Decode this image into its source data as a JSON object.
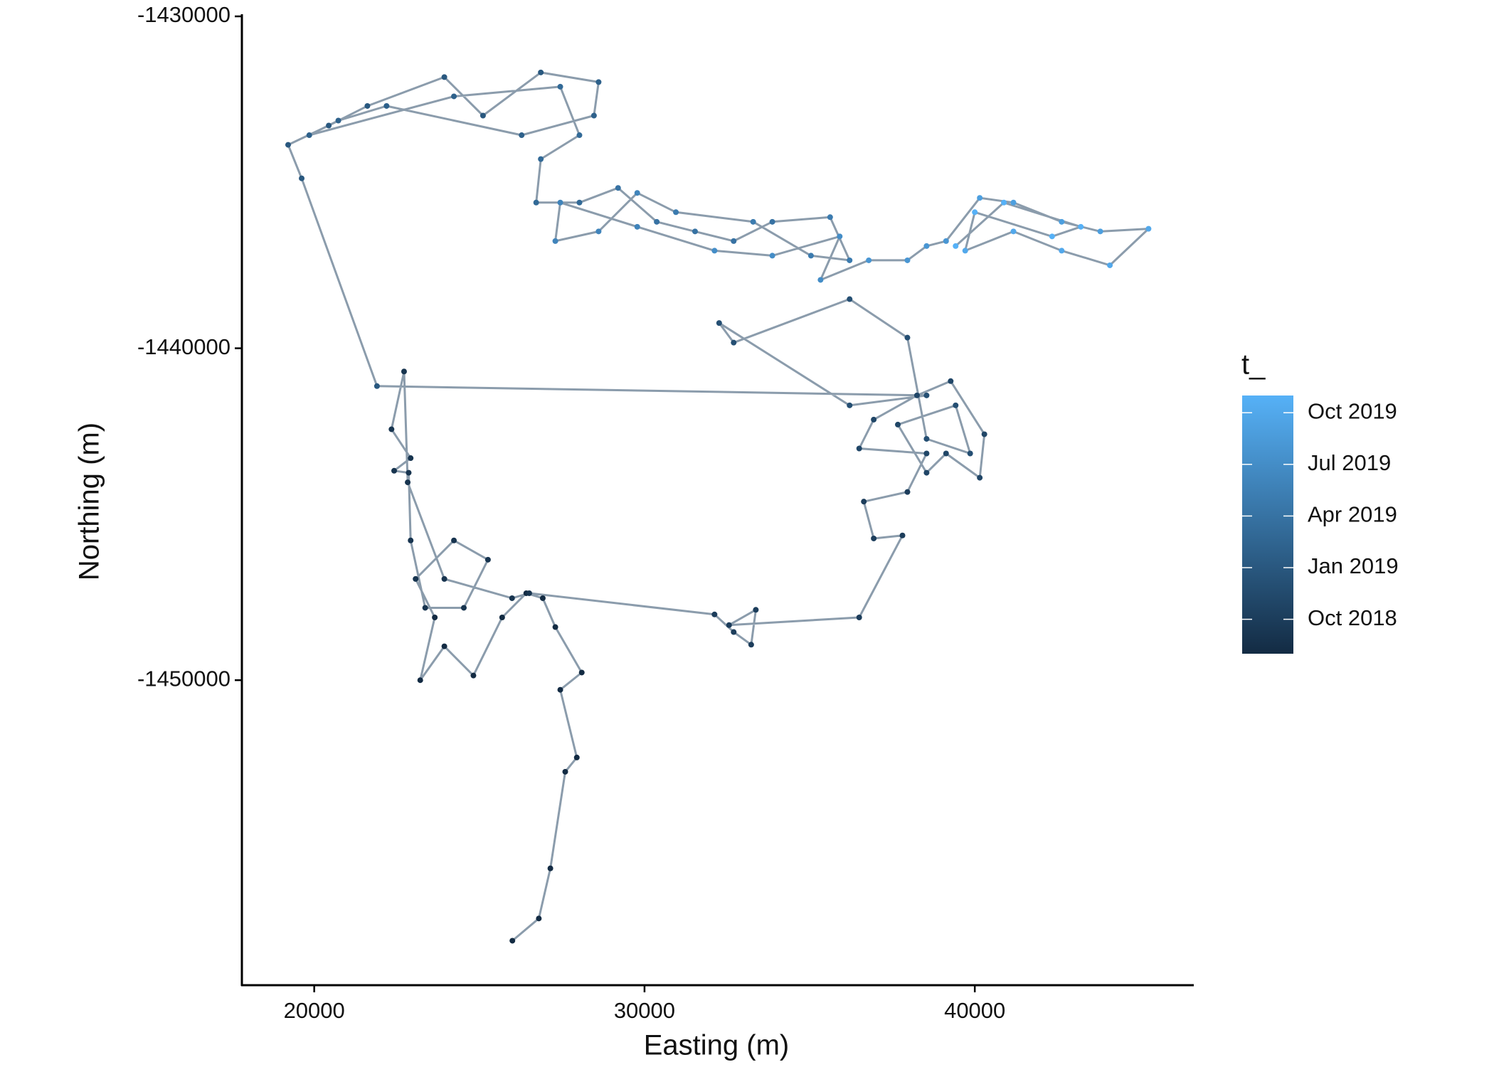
{
  "chart_data": {
    "type": "path",
    "x_label": "Easting (m)",
    "y_label": "Northing (m)",
    "xlim": [
      17810,
      46630
    ],
    "ylim": [
      -1459190,
      -1430000
    ],
    "xticks": [
      20000,
      30000,
      40000
    ],
    "yticks": [
      -1430000,
      -1440000,
      -1450000
    ],
    "line_color": "#2c4a68",
    "x": [
      26000,
      26800,
      27150,
      27600,
      27950,
      27450,
      28100,
      27300,
      26920,
      26420,
      25690,
      24820,
      23940,
      23210,
      23650,
      23070,
      24230,
      25260,
      24530,
      23360,
      22920,
      22860,
      22420,
      22920,
      22340,
      22720,
      22830,
      23940,
      25990,
      26510,
      32120,
      32700,
      33230,
      33370,
      32560,
      36500,
      37810,
      36940,
      36640,
      37960,
      38540,
      36500,
      36940,
      38250,
      39270,
      40290,
      40150,
      39130,
      38540,
      37670,
      39420,
      39860,
      38540,
      37960,
      36210,
      32700,
      32260,
      36210,
      38540,
      21900,
      19620,
      19210,
      20440,
      21610,
      23940,
      25110,
      26860,
      28610,
      28470,
      26280,
      22190,
      20730,
      19850,
      24230,
      27450,
      28030,
      26860,
      26720,
      28030,
      29200,
      30370,
      31530,
      32700,
      33870,
      35620,
      36210,
      35040,
      33290,
      30950,
      29780,
      28610,
      27300,
      27450,
      29780,
      32120,
      33870,
      35910,
      35330,
      36790,
      37960,
      38540,
      39130,
      40150,
      41170,
      42630,
      43800,
      45260,
      44090,
      42630,
      41170,
      39710,
      40000,
      42340,
      43210,
      40880,
      39420
    ],
    "y": [
      -1457850,
      -1457180,
      -1455670,
      -1452760,
      -1452330,
      -1450290,
      -1449770,
      -1448400,
      -1447530,
      -1447380,
      -1448110,
      -1449860,
      -1448980,
      -1450000,
      -1448110,
      -1446950,
      -1445790,
      -1446370,
      -1447820,
      -1447820,
      -1445790,
      -1443750,
      -1443690,
      -1443310,
      -1442440,
      -1440700,
      -1444040,
      -1446950,
      -1447530,
      -1447380,
      -1448020,
      -1448550,
      -1448930,
      -1447880,
      -1448340,
      -1448110,
      -1445640,
      -1445730,
      -1444620,
      -1444330,
      -1443170,
      -1443020,
      -1442150,
      -1441420,
      -1440990,
      -1442590,
      -1443900,
      -1443170,
      -1443750,
      -1442300,
      -1441720,
      -1443170,
      -1442730,
      -1439680,
      -1438520,
      -1439830,
      -1439240,
      -1441720,
      -1441420,
      -1441140,
      -1434880,
      -1433870,
      -1433290,
      -1432700,
      -1431830,
      -1432990,
      -1431690,
      -1431980,
      -1432990,
      -1433580,
      -1432700,
      -1433140,
      -1433580,
      -1432410,
      -1432120,
      -1433580,
      -1434300,
      -1435610,
      -1435610,
      -1435170,
      -1436190,
      -1436480,
      -1436770,
      -1436190,
      -1436050,
      -1437350,
      -1437210,
      -1436190,
      -1435900,
      -1435320,
      -1436480,
      -1436770,
      -1435610,
      -1436340,
      -1437060,
      -1437210,
      -1436630,
      -1437940,
      -1437350,
      -1437350,
      -1436920,
      -1436770,
      -1435470,
      -1435610,
      -1436190,
      -1436480,
      -1436400,
      -1437500,
      -1437060,
      -1436480,
      -1437060,
      -1435900,
      -1436630,
      -1436340,
      -1435610,
      -1436920
    ],
    "t": [
      "2018-08",
      "2018-08",
      "2018-08",
      "2018-08",
      "2018-08",
      "2018-08",
      "2018-08",
      "2018-08",
      "2018-08",
      "2018-08",
      "2018-08",
      "2018-08",
      "2018-08",
      "2018-08",
      "2018-08",
      "2018-09",
      "2018-09",
      "2018-09",
      "2018-09",
      "2018-09",
      "2018-09",
      "2018-09",
      "2018-09",
      "2018-09",
      "2018-09",
      "2018-09",
      "2018-09",
      "2018-09",
      "2018-09",
      "2018-09",
      "2018-10",
      "2018-10",
      "2018-10",
      "2018-10",
      "2018-10",
      "2018-10",
      "2018-10",
      "2018-10",
      "2018-10",
      "2018-10",
      "2018-11",
      "2018-11",
      "2018-11",
      "2018-11",
      "2018-11",
      "2018-11",
      "2018-11",
      "2018-11",
      "2018-11",
      "2018-11",
      "2018-12",
      "2018-12",
      "2018-12",
      "2018-12",
      "2018-12",
      "2018-12",
      "2018-12",
      "2018-12",
      "2018-12",
      "2019-01",
      "2019-01",
      "2019-01",
      "2019-01",
      "2019-01",
      "2019-01",
      "2019-01",
      "2019-01",
      "2019-02",
      "2019-02",
      "2019-02",
      "2019-02",
      "2019-02",
      "2019-02",
      "2019-02",
      "2019-03",
      "2019-03",
      "2019-03",
      "2019-03",
      "2019-03",
      "2019-04",
      "2019-04",
      "2019-04",
      "2019-04",
      "2019-04",
      "2019-05",
      "2019-05",
      "2019-05",
      "2019-05",
      "2019-05",
      "2019-06",
      "2019-06",
      "2019-06",
      "2019-06",
      "2019-06",
      "2019-07",
      "2019-07",
      "2019-07",
      "2019-07",
      "2019-08",
      "2019-08",
      "2019-08",
      "2019-08",
      "2019-09",
      "2019-09",
      "2019-09",
      "2019-09",
      "2019-10",
      "2019-10",
      "2019-10",
      "2019-10",
      "2019-10",
      "2019-11",
      "2019-11",
      "2019-11",
      "2019-11",
      "2019-11"
    ],
    "legend": {
      "title": "t_",
      "clim": [
        "2018-08",
        "2019-11"
      ],
      "low_color": "#132B43",
      "high_color": "#56B1F7",
      "ticks": [
        {
          "value": "2018-10",
          "label": "Oct 2018"
        },
        {
          "value": "2019-01",
          "label": "Jan 2019"
        },
        {
          "value": "2019-04",
          "label": "Apr 2019"
        },
        {
          "value": "2019-07",
          "label": "Jul 2019"
        },
        {
          "value": "2019-10",
          "label": "Oct 2019"
        }
      ]
    }
  }
}
